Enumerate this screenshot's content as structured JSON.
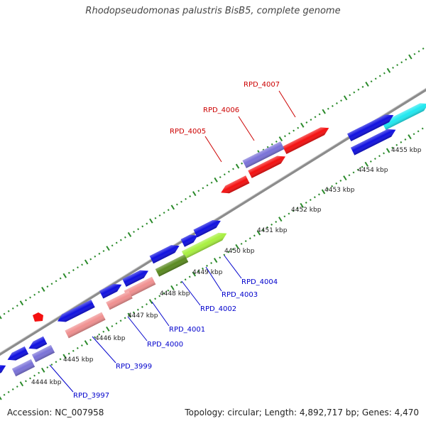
{
  "title": "Rhodopseudomonas palustris BisB5, complete genome",
  "footer": {
    "accession": "Accession: NC_007958",
    "summary": "Topology: circular; Length: 4,892,717 bp; Genes: 4,470"
  },
  "colors": {
    "backbone": "#8c8c8c",
    "tick": "#2a8a2a",
    "label_red": "#cc0000",
    "label_blue": "#0000cc",
    "blue": "#1010e0",
    "purple": "#7a72d8",
    "red": "#f41010",
    "pink": "#f09090",
    "green_light": "#a8f040",
    "green_dark": "#5a8a20",
    "cyan": "#20e8f0"
  },
  "kbp_ticks": [
    "4444 kbp",
    "4445 kbp",
    "4446 kbp",
    "4447 kbp",
    "4448 kbp",
    "4449 kbp",
    "4450 kbp",
    "4451 kbp",
    "4452 kbp",
    "4453 kbp",
    "4454 kbp",
    "4455 kbp"
  ],
  "gene_labels": {
    "RPD_4007": "RPD_4007",
    "RPD_4006": "RPD_4006",
    "RPD_4005": "RPD_4005",
    "RPD_4004": "RPD_4004",
    "RPD_4003": "RPD_4003",
    "RPD_4002": "RPD_4002",
    "RPD_4001": "RPD_4001",
    "RPD_4000": "RPD_4000",
    "RPD_3999": "RPD_3999",
    "RPD_3997": "RPD_3997"
  }
}
